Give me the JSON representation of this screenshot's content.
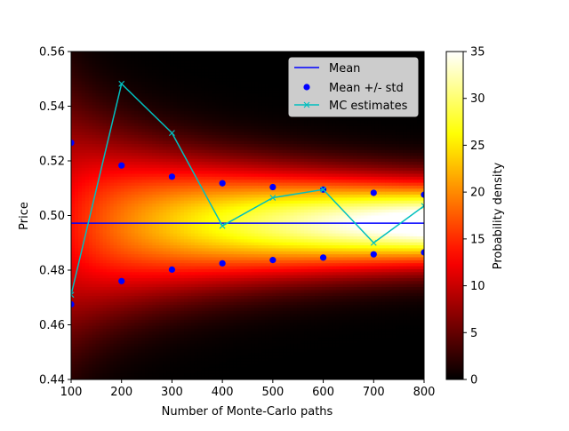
{
  "chart_data": {
    "type": "heatmap",
    "xlabel": "Number of Monte-Carlo paths",
    "ylabel": "Price",
    "xlim": [
      100,
      800
    ],
    "ylim": [
      0.44,
      0.56
    ],
    "x_ticks": [
      100,
      200,
      300,
      400,
      500,
      600,
      700,
      800
    ],
    "y_ticks": [
      0.44,
      0.46,
      0.48,
      0.5,
      0.52,
      0.54,
      0.56
    ],
    "y_tick_labels": [
      "0.44",
      "0.46",
      "0.48",
      "0.50",
      "0.52",
      "0.54",
      "0.56"
    ],
    "mean": 0.4972,
    "x": [
      100,
      200,
      300,
      400,
      500,
      600,
      700,
      800
    ],
    "series": [
      {
        "name": "Mean",
        "kind": "hline",
        "color": "#0000ff",
        "value": 0.4972
      },
      {
        "name": "Mean +/- std",
        "kind": "scatter",
        "color": "#0000ff",
        "upper": [
          0.5266,
          0.5183,
          0.5142,
          0.5118,
          0.5104,
          0.5095,
          0.5083,
          0.5076
        ],
        "lower": [
          0.4675,
          0.476,
          0.4802,
          0.4825,
          0.4837,
          0.4846,
          0.4858,
          0.4865
        ]
      },
      {
        "name": "MC estimates",
        "kind": "line-x",
        "color": "#00bfbf",
        "values": [
          0.471,
          0.5482,
          0.5302,
          0.4962,
          0.5065,
          0.5095,
          0.49,
          0.5035
        ]
      }
    ],
    "legend": {
      "position": "upper right",
      "entries": [
        "Mean",
        "Mean +/- std",
        "MC estimates"
      ]
    },
    "colorbar": {
      "label": "Probability density",
      "colormap": "hot",
      "min": 0,
      "max": 35,
      "ticks": [
        0,
        5,
        10,
        15,
        20,
        25,
        30,
        35
      ]
    },
    "density": {
      "description": "normal density centered on mean with std shrinking with path count",
      "sigma_times_sqrt_n": 0.2955
    }
  }
}
